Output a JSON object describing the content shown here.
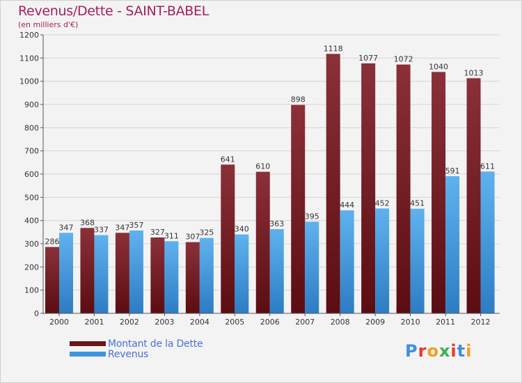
{
  "chart_data": {
    "type": "bar",
    "title": "Revenus/Dette - SAINT-BABEL",
    "subtitle": "(en milliers d'€)",
    "categories": [
      "2000",
      "2001",
      "2002",
      "2003",
      "2004",
      "2005",
      "2006",
      "2007",
      "2008",
      "2009",
      "2010",
      "2011",
      "2012"
    ],
    "series": [
      {
        "name": "Montant de la Dette",
        "values": [
          286,
          368,
          347,
          327,
          307,
          641,
          610,
          898,
          1118,
          1077,
          1072,
          1040,
          1013
        ],
        "color": "#7a1e24"
      },
      {
        "name": "Revenus",
        "values": [
          347,
          337,
          357,
          311,
          325,
          340,
          363,
          395,
          444,
          452,
          451,
          591,
          611
        ],
        "color": "#3d96dd"
      }
    ],
    "ylim": [
      0,
      1200
    ],
    "yticks": [
      0,
      100,
      200,
      300,
      400,
      500,
      600,
      700,
      800,
      900,
      1000,
      1100,
      1200
    ],
    "grid": true,
    "legend_position": "bottom-left"
  },
  "logo": {
    "text": "Proxiti",
    "letter_colors": [
      "#3d8ee0",
      "#e8382e",
      "#f0a020",
      "#3db04a",
      "#e8382e",
      "#3d8ee0",
      "#f0a020"
    ]
  }
}
